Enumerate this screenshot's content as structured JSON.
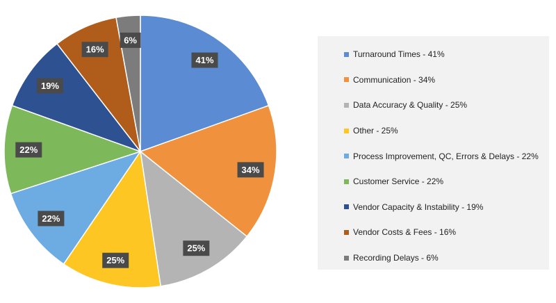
{
  "chart_data": {
    "type": "pie",
    "title": "",
    "legend_position": "right",
    "slices": [
      {
        "legend": "Turnaround Times - 41%",
        "value": 41,
        "label": "41%",
        "color": "#5b8bd3"
      },
      {
        "legend": "Communication - 34%",
        "value": 34,
        "label": "34%",
        "color": "#f0923d"
      },
      {
        "legend": "Data Accuracy & Quality - 25%",
        "value": 25,
        "label": "25%",
        "color": "#b4b4b4"
      },
      {
        "legend": "Other - 25%",
        "value": 25,
        "label": "25%",
        "color": "#fdc623"
      },
      {
        "legend": "Process Improvement, QC, Errors & Delays - 22%",
        "value": 22,
        "label": "22%",
        "color": "#6cace2"
      },
      {
        "legend": "Customer Service - 22%",
        "value": 22,
        "label": "22%",
        "color": "#7db95a"
      },
      {
        "legend": "Vendor Capacity & Instability - 19%",
        "value": 19,
        "label": "19%",
        "color": "#2d5191"
      },
      {
        "legend": "Vendor Costs & Fees - 16%",
        "value": 16,
        "label": "16%",
        "color": "#b05c1a"
      },
      {
        "legend": "Recording Delays - 6%",
        "value": 6,
        "label": "6%",
        "color": "#7c7c7c"
      }
    ]
  }
}
